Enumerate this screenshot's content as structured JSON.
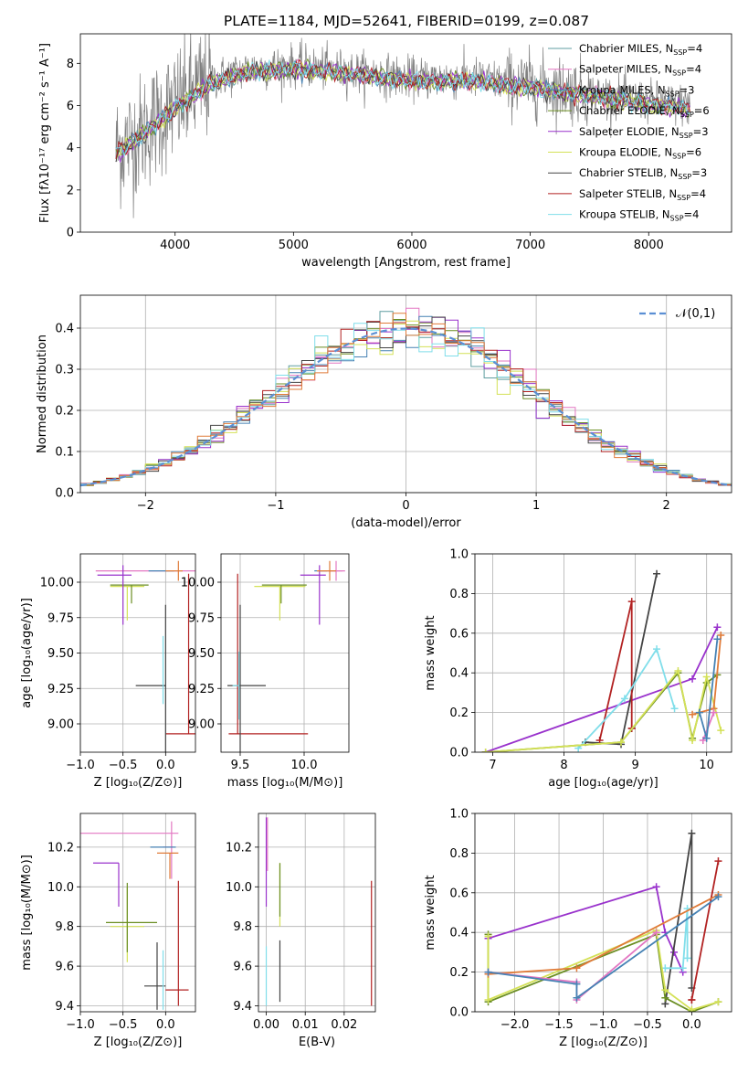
{
  "figure": {
    "title": "PLATE=1184, MJD=52641, FIBERID=0199, z=0.087"
  },
  "chart_data": [
    {
      "id": "spectrum",
      "type": "line",
      "xlabel": "wavelength [Angstrom, rest frame]",
      "ylabel": "Flux [fλ10⁻¹⁷ erg cm⁻² s⁻¹ A⁻¹]",
      "xlim": [
        3200,
        8700
      ],
      "ylim": [
        0,
        9.4
      ],
      "xticks": [
        4000,
        5000,
        6000,
        7000,
        8000
      ],
      "yticks": [
        0,
        2,
        4,
        6,
        8
      ],
      "legend_position": "right",
      "x_range": [
        3500,
        8350
      ],
      "continuum_anchors": [
        [
          3500,
          3.9
        ],
        [
          3700,
          4.6
        ],
        [
          3900,
          5.6
        ],
        [
          4100,
          6.4
        ],
        [
          4300,
          7.2
        ],
        [
          4600,
          7.7
        ],
        [
          5000,
          7.9
        ],
        [
          5500,
          7.6
        ],
        [
          6000,
          7.3
        ],
        [
          6500,
          7.3
        ],
        [
          7000,
          7.0
        ],
        [
          7500,
          6.6
        ],
        [
          8000,
          6.2
        ],
        [
          8350,
          6.0
        ]
      ],
      "series": [
        {
          "name": "Chabrier MILES, N_SSP=4",
          "color": "#5f9ea0"
        },
        {
          "name": "Salpeter MILES, N_SSP=4",
          "color": "#e377c2"
        },
        {
          "name": "Kroupa MILES, N_SSP=3",
          "color": "#4682b4"
        },
        {
          "name": "Chabrier ELODIE, N_SSP=6",
          "color": "#6b8e23"
        },
        {
          "name": "Salpeter ELODIE, N_SSP=3",
          "color": "#9932cc"
        },
        {
          "name": "Kroupa ELODIE, N_SSP=6",
          "color": "#d4e157"
        },
        {
          "name": "Chabrier STELIB, N_SSP=3",
          "color": "#444444"
        },
        {
          "name": "Salpeter STELIB, N_SSP=4",
          "color": "#b22222"
        },
        {
          "name": "Kroupa STELIB, N_SSP=4",
          "color": "#80deea"
        }
      ],
      "legend_labels": [
        {
          "base": "Chabrier MILES, N",
          "sub": "SSP",
          "tail": "=4"
        },
        {
          "base": "Salpeter MILES, N",
          "sub": "SSP",
          "tail": "=4"
        },
        {
          "base": "Kroupa MILES, N",
          "sub": "SSP",
          "tail": "=3"
        },
        {
          "base": "Chabrier ELODIE, N",
          "sub": "SSP",
          "tail": "=6"
        },
        {
          "base": "Salpeter ELODIE, N",
          "sub": "SSP",
          "tail": "=3"
        },
        {
          "base": "Kroupa ELODIE, N",
          "sub": "SSP",
          "tail": "=6"
        },
        {
          "base": "Chabrier STELIB, N",
          "sub": "SSP",
          "tail": "=3"
        },
        {
          "base": "Salpeter STELIB, N",
          "sub": "SSP",
          "tail": "=4"
        },
        {
          "base": "Kroupa STELIB, N",
          "sub": "SSP",
          "tail": "=4"
        }
      ]
    },
    {
      "id": "residuals",
      "type": "histogram",
      "xlabel": "(data-model)/error",
      "ylabel": "Normed distribution",
      "xlim": [
        -2.5,
        2.5
      ],
      "ylim": [
        0,
        0.48
      ],
      "xticks": [
        -2,
        -1,
        0,
        1,
        2
      ],
      "yticks": [
        0.0,
        0.1,
        0.2,
        0.3,
        0.4
      ],
      "grid": true,
      "legend": "𝒩(0,1)",
      "legend_position": "top-right",
      "reference_curve": "normal(0,1)",
      "reference_color": "#5b8fd4",
      "bin_width": 0.1
    },
    {
      "id": "age-vs-Z",
      "type": "errorbar",
      "xlabel": "Z [log₁₀(Z/Z⊙)]",
      "ylabel": "age  [log₁₀(age/yr)]",
      "xlim": [
        -1.0,
        0.35
      ],
      "ylim": [
        8.8,
        10.2
      ],
      "xticks": [
        -1.0,
        -0.5,
        0.0
      ],
      "yticks": [
        9.0,
        9.25,
        9.5,
        9.75,
        10.0
      ],
      "grid": true,
      "points": [
        {
          "x": 0.27,
          "y": 8.93,
          "xerr": [
            0.27,
            0.27
          ],
          "yerr": [
            0.0,
            1.13
          ],
          "color": "#b22222"
        },
        {
          "x": -0.1,
          "y": 9.27,
          "xerr": [
            0.25,
            0.1
          ],
          "yerr": [
            0.0,
            0.0
          ],
          "color": "#444444"
        },
        {
          "x": 0.0,
          "y": 9.27,
          "xerr": [
            0.05,
            0.0
          ],
          "yerr": [
            0.57,
            0.57
          ],
          "color": "#444444"
        },
        {
          "x": -0.03,
          "y": 9.38,
          "xerr": [
            0.0,
            0.0
          ],
          "yerr": [
            0.24,
            0.24
          ],
          "color": "#80deea"
        },
        {
          "x": -0.45,
          "y": 9.97,
          "xerr": [
            0.2,
            0.2
          ],
          "yerr": [
            0.24,
            0.0
          ],
          "color": "#d4e157"
        },
        {
          "x": -0.4,
          "y": 9.98,
          "xerr": [
            0.25,
            0.2
          ],
          "yerr": [
            0.13,
            0.0
          ],
          "color": "#6b8e23"
        },
        {
          "x": -0.3,
          "y": 10.08,
          "xerr": [
            0.52,
            0.7
          ],
          "yerr": [
            0.0,
            0.0
          ],
          "color": "#e377c2"
        },
        {
          "x": -0.5,
          "y": 10.05,
          "xerr": [
            0.3,
            0.1
          ],
          "yerr": [
            0.35,
            0.07
          ],
          "color": "#9932cc"
        },
        {
          "x": 0.0,
          "y": 10.08,
          "xerr": [
            0.2,
            0.1
          ],
          "yerr": [
            0.0,
            0.0
          ],
          "color": "#4682b4"
        },
        {
          "x": 0.15,
          "y": 10.08,
          "xerr": [
            0.15,
            0.05
          ],
          "yerr": [
            0.07,
            0.07
          ],
          "color": "#e07b39"
        }
      ]
    },
    {
      "id": "age-vs-mass",
      "type": "errorbar",
      "xlabel": "mass [log₁₀(M/M⊙)]",
      "ylabel": "",
      "xlim": [
        9.35,
        10.35
      ],
      "ylim": [
        8.8,
        10.2
      ],
      "xticks": [
        9.5,
        10.0
      ],
      "yticks": [
        9.0,
        9.25,
        9.5,
        9.75,
        10.0
      ],
      "grid": true,
      "points": [
        {
          "x": 9.48,
          "y": 8.93,
          "xerr": [
            0.07,
            0.55
          ],
          "yerr": [
            0.0,
            1.13
          ],
          "color": "#b22222"
        },
        {
          "x": 9.5,
          "y": 9.27,
          "xerr": [
            0.1,
            0.2
          ],
          "yerr": [
            0.57,
            0.57
          ],
          "color": "#444444"
        },
        {
          "x": 9.49,
          "y": 9.27,
          "xerr": [
            0.05,
            0.0
          ],
          "yerr": [
            0.24,
            0.24
          ],
          "color": "#80deea"
        },
        {
          "x": 9.81,
          "y": 9.97,
          "xerr": [
            0.2,
            0.2
          ],
          "yerr": [
            0.24,
            0.0
          ],
          "color": "#d4e157"
        },
        {
          "x": 9.82,
          "y": 9.98,
          "xerr": [
            0.15,
            0.2
          ],
          "yerr": [
            0.13,
            0.0
          ],
          "color": "#6b8e23"
        },
        {
          "x": 10.12,
          "y": 10.05,
          "xerr": [
            0.15,
            0.05
          ],
          "yerr": [
            0.35,
            0.07
          ],
          "color": "#9932cc"
        },
        {
          "x": 10.22,
          "y": 10.08,
          "xerr": [
            0.1,
            0.1
          ],
          "yerr": [
            0.0,
            0.0
          ],
          "color": "#e377c2"
        },
        {
          "x": 10.25,
          "y": 10.08,
          "xerr": [
            0.05,
            0.05
          ],
          "yerr": [
            0.07,
            0.07
          ],
          "color": "#e377c2"
        },
        {
          "x": 10.18,
          "y": 10.08,
          "xerr": [
            0.1,
            0.0
          ],
          "yerr": [
            0.0,
            0.0
          ],
          "color": "#4682b4"
        },
        {
          "x": 10.2,
          "y": 10.08,
          "xerr": [
            0.1,
            0.05
          ],
          "yerr": [
            0.07,
            0.07
          ],
          "color": "#e07b39"
        }
      ]
    },
    {
      "id": "weight-vs-age",
      "type": "line",
      "xlabel": "age  [log₁₀(age/yr)]",
      "ylabel": "mass weight",
      "xlim": [
        6.75,
        10.35
      ],
      "ylim": [
        0,
        1.0
      ],
      "xticks": [
        7,
        8,
        9,
        10
      ],
      "yticks": [
        0.0,
        0.2,
        0.4,
        0.6,
        0.8,
        1.0
      ],
      "grid": true,
      "series": [
        {
          "color": "#9932cc",
          "x": [
            6.9,
            9.8,
            10.15
          ],
          "y": [
            0.0,
            0.37,
            0.63
          ]
        },
        {
          "color": "#444444",
          "x": [
            8.3,
            8.8,
            9.3
          ],
          "y": [
            0.05,
            0.04,
            0.9
          ]
        },
        {
          "color": "#b22222",
          "x": [
            8.5,
            8.95,
            8.95,
            8.95
          ],
          "y": [
            0.06,
            0.76,
            0.12,
            0.12
          ]
        },
        {
          "color": "#80deea",
          "x": [
            8.2,
            8.85,
            9.3,
            9.55
          ],
          "y": [
            0.02,
            0.27,
            0.52,
            0.22
          ]
        },
        {
          "color": "#6b8e23",
          "x": [
            6.9,
            8.8,
            9.6,
            9.8,
            10.0,
            10.15
          ],
          "y": [
            0.0,
            0.05,
            0.4,
            0.07,
            0.35,
            0.39
          ]
        },
        {
          "color": "#d4e157",
          "x": [
            6.9,
            8.8,
            9.6,
            9.8,
            10.0,
            10.2
          ],
          "y": [
            0.0,
            0.05,
            0.41,
            0.06,
            0.38,
            0.11
          ]
        },
        {
          "color": "#e07b39",
          "x": [
            9.8,
            10.1,
            10.2
          ],
          "y": [
            0.19,
            0.22,
            0.59
          ]
        },
        {
          "color": "#e377c2",
          "x": [
            9.95,
            10.1
          ],
          "y": [
            0.06,
            0.2
          ]
        },
        {
          "color": "#4682b4",
          "x": [
            9.9,
            10.0,
            10.15
          ],
          "y": [
            0.2,
            0.07,
            0.57
          ]
        }
      ]
    },
    {
      "id": "mass-vs-Z",
      "type": "errorbar",
      "xlabel": "Z [log₁₀(Z/Z⊙)]",
      "ylabel": "mass [log₁₀(M/M⊙)]",
      "xlim": [
        -1.0,
        0.35
      ],
      "ylim": [
        9.37,
        10.37
      ],
      "xticks": [
        -1.0,
        -0.5,
        0.0
      ],
      "yticks": [
        9.4,
        9.6,
        9.8,
        10.0,
        10.2
      ],
      "grid": true,
      "points": [
        {
          "x": 0.15,
          "y": 9.48,
          "xerr": [
            0.15,
            0.12
          ],
          "yerr": [
            0.08,
            0.55
          ],
          "color": "#b22222"
        },
        {
          "x": -0.1,
          "y": 9.5,
          "xerr": [
            0.15,
            0.1
          ],
          "yerr": [
            0.12,
            0.22
          ],
          "color": "#444444"
        },
        {
          "x": -0.03,
          "y": 9.5,
          "xerr": [
            0.0,
            0.0
          ],
          "yerr": [
            0.12,
            0.18
          ],
          "color": "#80deea"
        },
        {
          "x": -0.45,
          "y": 9.8,
          "xerr": [
            0.2,
            0.2
          ],
          "yerr": [
            0.18,
            0.2
          ],
          "color": "#d4e157"
        },
        {
          "x": -0.45,
          "y": 9.82,
          "xerr": [
            0.25,
            0.35
          ],
          "yerr": [
            0.15,
            0.2
          ],
          "color": "#6b8e23"
        },
        {
          "x": -0.55,
          "y": 10.12,
          "xerr": [
            0.3,
            0.0
          ],
          "yerr": [
            0.22,
            0.0
          ],
          "color": "#9932cc"
        },
        {
          "x": -0.3,
          "y": 10.27,
          "xerr": [
            0.7,
            0.45
          ],
          "yerr": [
            0.0,
            0.0
          ],
          "color": "#e377c2"
        },
        {
          "x": 0.07,
          "y": 10.2,
          "xerr": [
            0.1,
            0.02
          ],
          "yerr": [
            0.16,
            0.13
          ],
          "color": "#e377c2"
        },
        {
          "x": 0.0,
          "y": 10.2,
          "xerr": [
            0.18,
            0.12
          ],
          "yerr": [
            0.0,
            0.0
          ],
          "color": "#4682b4"
        },
        {
          "x": 0.05,
          "y": 10.17,
          "xerr": [
            0.15,
            0.1
          ],
          "yerr": [
            0.13,
            0.0
          ],
          "color": "#e07b39"
        }
      ]
    },
    {
      "id": "mass-vs-EBV",
      "type": "errorbar",
      "xlabel": "E(B-V)",
      "ylabel": "",
      "xlim": [
        -0.002,
        0.028
      ],
      "ylim": [
        9.37,
        10.37
      ],
      "xticks": [
        0.0,
        0.01,
        0.02
      ],
      "yticks": [
        9.4,
        9.6,
        9.8,
        10.0,
        10.2
      ],
      "grid": true,
      "points": [
        {
          "x": 0.027,
          "y": 9.6,
          "xerr": [
            0.0,
            0.0
          ],
          "yerr": [
            0.2,
            0.43
          ],
          "color": "#b22222"
        },
        {
          "x": 0.0035,
          "y": 9.6,
          "xerr": [
            0.0,
            0.0
          ],
          "yerr": [
            0.18,
            0.13
          ],
          "color": "#444444"
        },
        {
          "x": 0.0035,
          "y": 9.9,
          "xerr": [
            0.0,
            0.0
          ],
          "yerr": [
            0.1,
            0.22
          ],
          "color": "#d4e157"
        },
        {
          "x": 0.0035,
          "y": 9.95,
          "xerr": [
            0.0,
            0.0
          ],
          "yerr": [
            0.1,
            0.17
          ],
          "color": "#6b8e23"
        },
        {
          "x": 0.0,
          "y": 10.1,
          "xerr": [
            0.0,
            0.0
          ],
          "yerr": [
            0.2,
            0.25
          ],
          "color": "#9932cc"
        },
        {
          "x": 0.0003,
          "y": 10.2,
          "xerr": [
            0.0,
            0.0
          ],
          "yerr": [
            0.12,
            0.15
          ],
          "color": "#e377c2"
        },
        {
          "x": 0.0,
          "y": 9.55,
          "xerr": [
            0.0,
            0.0
          ],
          "yerr": [
            0.15,
            0.15
          ],
          "color": "#80deea"
        }
      ]
    },
    {
      "id": "weight-vs-Z",
      "type": "line",
      "xlabel": "Z [log₁₀(Z/Z⊙)]",
      "ylabel": "mass weight",
      "xlim": [
        -2.45,
        0.45
      ],
      "ylim": [
        0,
        1.0
      ],
      "xticks": [
        -2.0,
        -1.5,
        -1.0,
        -0.5,
        0.0
      ],
      "yticks": [
        0.0,
        0.2,
        0.4,
        0.6,
        0.8,
        1.0
      ],
      "grid": true,
      "series": [
        {
          "color": "#9932cc",
          "x": [
            -2.3,
            -0.4,
            -0.3,
            -0.2,
            -0.1
          ],
          "y": [
            0.37,
            0.63,
            0.4,
            0.3,
            0.2
          ]
        },
        {
          "color": "#444444",
          "x": [
            -0.3,
            0.0,
            0.0
          ],
          "y": [
            0.04,
            0.9,
            0.12
          ]
        },
        {
          "color": "#b22222",
          "x": [
            0.0,
            0.3,
            0.0
          ],
          "y": [
            0.06,
            0.76,
            0.06
          ]
        },
        {
          "color": "#80deea",
          "x": [
            -0.3,
            -0.1,
            -0.05,
            -0.05
          ],
          "y": [
            0.22,
            0.22,
            0.52,
            0.27
          ]
        },
        {
          "color": "#6b8e23",
          "x": [
            -2.3,
            -2.3,
            -0.4,
            -0.3,
            0.0,
            0.3
          ],
          "y": [
            0.39,
            0.05,
            0.39,
            0.07,
            0.0,
            0.05
          ]
        },
        {
          "color": "#d4e157",
          "x": [
            -2.3,
            -2.3,
            -0.4,
            -0.3,
            0.0,
            0.3
          ],
          "y": [
            0.38,
            0.06,
            0.41,
            0.11,
            0.01,
            0.05
          ]
        },
        {
          "color": "#e07b39",
          "x": [
            -2.3,
            -1.3,
            0.3
          ],
          "y": [
            0.19,
            0.22,
            0.59
          ]
        },
        {
          "color": "#e377c2",
          "x": [
            -2.3,
            -1.3,
            -1.3,
            -0.4
          ],
          "y": [
            0.2,
            0.15,
            0.06,
            0.4
          ]
        },
        {
          "color": "#4682b4",
          "x": [
            -2.3,
            -1.3,
            -1.3,
            0.3
          ],
          "y": [
            0.2,
            0.14,
            0.07,
            0.58
          ]
        }
      ]
    }
  ]
}
